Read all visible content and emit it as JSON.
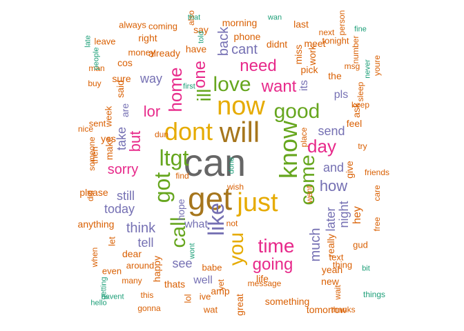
{
  "palette": {
    "teal": "#1b9e77",
    "orange": "#d95f02",
    "purple": "#7570b3",
    "pink": "#e7298a",
    "green": "#66a61e",
    "gold": "#e6ab02",
    "brown": "#a6761d",
    "gray": "#666666"
  },
  "words": [
    {
      "text": "can",
      "color": "gray",
      "size": 56,
      "rotate": 0
    },
    {
      "text": "get",
      "color": "brown",
      "size": 46,
      "rotate": 0
    },
    {
      "text": "will",
      "color": "brown",
      "size": 42,
      "rotate": 0
    },
    {
      "text": "dont",
      "color": "gold",
      "size": 36,
      "rotate": 0
    },
    {
      "text": "now",
      "color": "gold",
      "size": 38,
      "rotate": 0
    },
    {
      "text": "just",
      "color": "gold",
      "size": 38,
      "rotate": 0
    },
    {
      "text": "know",
      "color": "green",
      "size": 36,
      "rotate": 270
    },
    {
      "text": "ltgt",
      "color": "green",
      "size": 32,
      "rotate": 0
    },
    {
      "text": "good",
      "color": "green",
      "size": 30,
      "rotate": 0
    },
    {
      "text": "got",
      "color": "green",
      "size": 32,
      "rotate": 270
    },
    {
      "text": "like",
      "color": "purple",
      "size": 32,
      "rotate": 270
    },
    {
      "text": "love",
      "color": "green",
      "size": 30,
      "rotate": 0
    },
    {
      "text": "call",
      "color": "green",
      "size": 30,
      "rotate": 270
    },
    {
      "text": "you",
      "color": "gold",
      "size": 30,
      "rotate": 270
    },
    {
      "text": "come",
      "color": "green",
      "size": 30,
      "rotate": 270
    },
    {
      "text": "time",
      "color": "pink",
      "size": 28,
      "rotate": 0
    },
    {
      "text": "ill",
      "color": "green",
      "size": 28,
      "rotate": 270
    },
    {
      "text": "day",
      "color": "pink",
      "size": 26,
      "rotate": 0
    },
    {
      "text": "going",
      "color": "pink",
      "size": 24,
      "rotate": 0
    },
    {
      "text": "want",
      "color": "pink",
      "size": 24,
      "rotate": 0
    },
    {
      "text": "home",
      "color": "pink",
      "size": 26,
      "rotate": 270
    },
    {
      "text": "one",
      "color": "pink",
      "size": 24,
      "rotate": 270
    },
    {
      "text": "need",
      "color": "pink",
      "size": 24,
      "rotate": 0
    },
    {
      "text": "how",
      "color": "purple",
      "size": 22,
      "rotate": 0
    },
    {
      "text": "lor",
      "color": "pink",
      "size": 22,
      "rotate": 0
    },
    {
      "text": "but",
      "color": "pink",
      "size": 22,
      "rotate": 270
    },
    {
      "text": "sorry",
      "color": "pink",
      "size": 20,
      "rotate": 0
    },
    {
      "text": "much",
      "color": "purple",
      "size": 20,
      "rotate": 270
    },
    {
      "text": "think",
      "color": "purple",
      "size": 20,
      "rotate": 0
    },
    {
      "text": "still",
      "color": "purple",
      "size": 18,
      "rotate": 0
    },
    {
      "text": "later",
      "color": "purple",
      "size": 18,
      "rotate": 270
    },
    {
      "text": "see",
      "color": "purple",
      "size": 18,
      "rotate": 0
    },
    {
      "text": "back",
      "color": "purple",
      "size": 20,
      "rotate": 270
    },
    {
      "text": "cant",
      "color": "purple",
      "size": 20,
      "rotate": 0
    },
    {
      "text": "way",
      "color": "purple",
      "size": 18,
      "rotate": 0
    },
    {
      "text": "send",
      "color": "purple",
      "size": 18,
      "rotate": 0
    },
    {
      "text": "and",
      "color": "purple",
      "size": 18,
      "rotate": 0
    },
    {
      "text": "night",
      "color": "purple",
      "size": 18,
      "rotate": 270
    },
    {
      "text": "today",
      "color": "purple",
      "size": 18,
      "rotate": 0
    },
    {
      "text": "take",
      "color": "purple",
      "size": 18,
      "rotate": 270
    },
    {
      "text": "tell",
      "color": "purple",
      "size": 18,
      "rotate": 0
    },
    {
      "text": "well",
      "color": "purple",
      "size": 16,
      "rotate": 0
    },
    {
      "text": "what",
      "color": "purple",
      "size": 16,
      "rotate": 0
    },
    {
      "text": "its",
      "color": "purple",
      "size": 16,
      "rotate": 270
    },
    {
      "text": "pls",
      "color": "purple",
      "size": 16,
      "rotate": 0
    },
    {
      "text": "hope",
      "color": "purple",
      "size": 14,
      "rotate": 270
    },
    {
      "text": "are",
      "color": "purple",
      "size": 14,
      "rotate": 270
    },
    {
      "text": "hey",
      "color": "orange",
      "size": 16,
      "rotate": 270
    },
    {
      "text": "give",
      "color": "orange",
      "size": 14,
      "rotate": 270
    },
    {
      "text": "ask",
      "color": "orange",
      "size": 14,
      "rotate": 270
    },
    {
      "text": "feel",
      "color": "orange",
      "size": 14,
      "rotate": 0
    },
    {
      "text": "really",
      "color": "orange",
      "size": 14,
      "rotate": 270
    },
    {
      "text": "life",
      "color": "orange",
      "size": 14,
      "rotate": 0
    },
    {
      "text": "amp",
      "color": "orange",
      "size": 14,
      "rotate": 0
    },
    {
      "text": "dear",
      "color": "orange",
      "size": 14,
      "rotate": 0
    },
    {
      "text": "thats",
      "color": "orange",
      "size": 14,
      "rotate": 0
    },
    {
      "text": "happy",
      "color": "orange",
      "size": 14,
      "rotate": 270
    },
    {
      "text": "great",
      "color": "orange",
      "size": 14,
      "rotate": 270
    },
    {
      "text": "yeah",
      "color": "orange",
      "size": 14,
      "rotate": 0
    },
    {
      "text": "new",
      "color": "orange",
      "size": 14,
      "rotate": 0
    },
    {
      "text": "something",
      "color": "orange",
      "size": 14,
      "rotate": 0
    },
    {
      "text": "tomorrow",
      "color": "orange",
      "size": 14,
      "rotate": 0
    },
    {
      "text": "anything",
      "color": "orange",
      "size": 14,
      "rotate": 0
    },
    {
      "text": "please",
      "color": "orange",
      "size": 14,
      "rotate": 0
    },
    {
      "text": "yes",
      "color": "orange",
      "size": 14,
      "rotate": 0
    },
    {
      "text": "make",
      "color": "orange",
      "size": 14,
      "rotate": 270
    },
    {
      "text": "said",
      "color": "orange",
      "size": 14,
      "rotate": 270
    },
    {
      "text": "sure",
      "color": "orange",
      "size": 14,
      "rotate": 0
    },
    {
      "text": "cos",
      "color": "orange",
      "size": 14,
      "rotate": 0
    },
    {
      "text": "already",
      "color": "orange",
      "size": 14,
      "rotate": 0
    },
    {
      "text": "have",
      "color": "orange",
      "size": 14,
      "rotate": 0
    },
    {
      "text": "say",
      "color": "orange",
      "size": 14,
      "rotate": 0
    },
    {
      "text": "right",
      "color": "orange",
      "size": 14,
      "rotate": 0
    },
    {
      "text": "morning",
      "color": "orange",
      "size": 14,
      "rotate": 0
    },
    {
      "text": "phone",
      "color": "orange",
      "size": 14,
      "rotate": 0
    },
    {
      "text": "didnt",
      "color": "orange",
      "size": 14,
      "rotate": 0
    },
    {
      "text": "miss",
      "color": "orange",
      "size": 14,
      "rotate": 270
    },
    {
      "text": "work",
      "color": "orange",
      "size": 14,
      "rotate": 270
    },
    {
      "text": "meet",
      "color": "orange",
      "size": 14,
      "rotate": 0
    },
    {
      "text": "pick",
      "color": "orange",
      "size": 14,
      "rotate": 0
    },
    {
      "text": "the",
      "color": "orange",
      "size": 14,
      "rotate": 0
    },
    {
      "text": "last",
      "color": "orange",
      "size": 14,
      "rotate": 0
    },
    {
      "text": "always",
      "color": "orange",
      "size": 13,
      "rotate": 0
    },
    {
      "text": "coming",
      "color": "orange",
      "size": 13,
      "rotate": 0
    },
    {
      "text": "leave",
      "color": "orange",
      "size": 13,
      "rotate": 0
    },
    {
      "text": "money",
      "color": "orange",
      "size": 13,
      "rotate": 0
    },
    {
      "text": "sent",
      "color": "orange",
      "size": 13,
      "rotate": 0
    },
    {
      "text": "week",
      "color": "orange",
      "size": 13,
      "rotate": 270
    },
    {
      "text": "then",
      "color": "orange",
      "size": 13,
      "rotate": 270
    },
    {
      "text": "let",
      "color": "orange",
      "size": 13,
      "rotate": 270
    },
    {
      "text": "even",
      "color": "orange",
      "size": 13,
      "rotate": 0
    },
    {
      "text": "around",
      "color": "orange",
      "size": 13,
      "rotate": 0
    },
    {
      "text": "ive",
      "color": "orange",
      "size": 13,
      "rotate": 0
    },
    {
      "text": "wat",
      "color": "orange",
      "size": 13,
      "rotate": 0
    },
    {
      "text": "babe",
      "color": "orange",
      "size": 13,
      "rotate": 0
    },
    {
      "text": "text",
      "color": "orange",
      "size": 13,
      "rotate": 0
    },
    {
      "text": "gud",
      "color": "orange",
      "size": 13,
      "rotate": 0
    },
    {
      "text": "thing",
      "color": "orange",
      "size": 13,
      "rotate": 0
    },
    {
      "text": "tonight",
      "color": "orange",
      "size": 13,
      "rotate": 0
    },
    {
      "text": "number",
      "color": "orange",
      "size": 12,
      "rotate": 270
    },
    {
      "text": "msg",
      "color": "orange",
      "size": 12,
      "rotate": 0
    },
    {
      "text": "sleep",
      "color": "orange",
      "size": 12,
      "rotate": 270
    },
    {
      "text": "keep",
      "color": "orange",
      "size": 12,
      "rotate": 0
    },
    {
      "text": "try",
      "color": "orange",
      "size": 12,
      "rotate": 0
    },
    {
      "text": "friends",
      "color": "orange",
      "size": 12,
      "rotate": 0
    },
    {
      "text": "care",
      "color": "orange",
      "size": 12,
      "rotate": 270
    },
    {
      "text": "free",
      "color": "orange",
      "size": 12,
      "rotate": 270
    },
    {
      "text": "youre",
      "color": "orange",
      "size": 12,
      "rotate": 270
    },
    {
      "text": "person",
      "color": "orange",
      "size": 12,
      "rotate": 270
    },
    {
      "text": "next",
      "color": "orange",
      "size": 12,
      "rotate": 0
    },
    {
      "text": "place",
      "color": "orange",
      "size": 12,
      "rotate": 270
    },
    {
      "text": "went",
      "color": "orange",
      "size": 12,
      "rotate": 270
    },
    {
      "text": "find",
      "color": "orange",
      "size": 12,
      "rotate": 0
    },
    {
      "text": "dun",
      "color": "orange",
      "size": 12,
      "rotate": 0
    },
    {
      "text": "also",
      "color": "orange",
      "size": 12,
      "rotate": 270
    },
    {
      "text": "man",
      "color": "orange",
      "size": 12,
      "rotate": 0
    },
    {
      "text": "buy",
      "color": "orange",
      "size": 12,
      "rotate": 0
    },
    {
      "text": "nice",
      "color": "orange",
      "size": 12,
      "rotate": 0
    },
    {
      "text": "someone",
      "color": "orange",
      "size": 12,
      "rotate": 270
    },
    {
      "text": "did",
      "color": "orange",
      "size": 12,
      "rotate": 270
    },
    {
      "text": "when",
      "color": "orange",
      "size": 12,
      "rotate": 270
    },
    {
      "text": "many",
      "color": "orange",
      "size": 12,
      "rotate": 0
    },
    {
      "text": "this",
      "color": "orange",
      "size": 12,
      "rotate": 0
    },
    {
      "text": "gonna",
      "color": "orange",
      "size": 12,
      "rotate": 0
    },
    {
      "text": "wish",
      "color": "orange",
      "size": 12,
      "rotate": 0
    },
    {
      "text": "not",
      "color": "orange",
      "size": 12,
      "rotate": 0
    },
    {
      "text": "yet",
      "color": "orange",
      "size": 12,
      "rotate": 270
    },
    {
      "text": "lol",
      "color": "orange",
      "size": 13,
      "rotate": 270
    },
    {
      "text": "wait",
      "color": "orange",
      "size": 12,
      "rotate": 270
    },
    {
      "text": "thanks",
      "color": "orange",
      "size": 12,
      "rotate": 0
    },
    {
      "text": "message",
      "color": "orange",
      "size": 12,
      "rotate": 0
    },
    {
      "text": "late",
      "color": "teal",
      "size": 11,
      "rotate": 270
    },
    {
      "text": "people",
      "color": "teal",
      "size": 11,
      "rotate": 270
    },
    {
      "text": "that",
      "color": "teal",
      "size": 11,
      "rotate": 0
    },
    {
      "text": "wan",
      "color": "teal",
      "size": 11,
      "rotate": 0
    },
    {
      "text": "fine",
      "color": "teal",
      "size": 11,
      "rotate": 0
    },
    {
      "text": "never",
      "color": "teal",
      "size": 11,
      "rotate": 270
    },
    {
      "text": "told",
      "color": "teal",
      "size": 11,
      "rotate": 270
    },
    {
      "text": "first",
      "color": "teal",
      "size": 11,
      "rotate": 0
    },
    {
      "text": "wont",
      "color": "teal",
      "size": 11,
      "rotate": 270
    },
    {
      "text": "bit",
      "color": "teal",
      "size": 11,
      "rotate": 0
    },
    {
      "text": "things",
      "color": "teal",
      "size": 12,
      "rotate": 0
    },
    {
      "text": "getting",
      "color": "teal",
      "size": 11,
      "rotate": 270
    },
    {
      "text": "havent",
      "color": "teal",
      "size": 11,
      "rotate": 0
    },
    {
      "text": "hello",
      "color": "teal",
      "size": 11,
      "rotate": 0
    },
    {
      "text": "done",
      "color": "teal",
      "size": 11,
      "rotate": 270
    }
  ]
}
